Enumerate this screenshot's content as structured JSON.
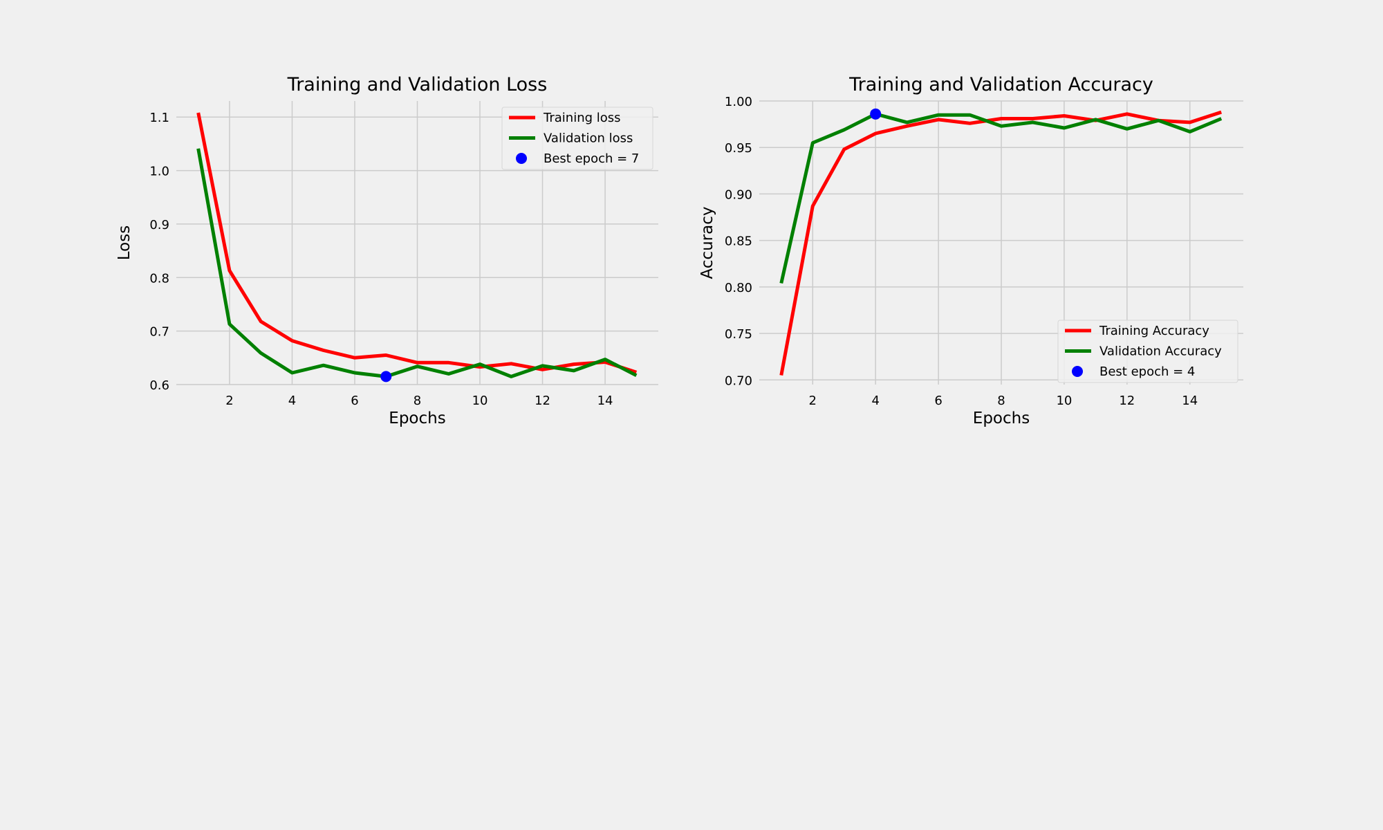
{
  "chart_data": [
    {
      "type": "line",
      "title": "Training and Validation Loss",
      "xlabel": "Epochs",
      "ylabel": "Loss",
      "xlim": [
        0.3,
        15.7
      ],
      "ylim": [
        0.6,
        1.13
      ],
      "xticks": [
        2,
        4,
        6,
        8,
        10,
        12,
        14
      ],
      "yticks": [
        0.6,
        0.7,
        0.8,
        0.9,
        1.0,
        1.1
      ],
      "ytick_labels": [
        "0.6",
        "0.7",
        "0.8",
        "0.9",
        "1.0",
        "1.1"
      ],
      "grid": true,
      "legend_position": "top-right",
      "x": [
        1,
        2,
        3,
        4,
        5,
        6,
        7,
        8,
        9,
        10,
        11,
        12,
        13,
        14,
        15
      ],
      "series": [
        {
          "name": "Training loss",
          "color": "#ff0000",
          "values": [
            1.108,
            0.813,
            0.718,
            0.682,
            0.664,
            0.65,
            0.655,
            0.641,
            0.641,
            0.633,
            0.639,
            0.628,
            0.638,
            0.642,
            0.623
          ]
        },
        {
          "name": "Validation loss",
          "color": "#008000",
          "values": [
            1.041,
            0.713,
            0.659,
            0.622,
            0.636,
            0.622,
            0.615,
            0.634,
            0.62,
            0.638,
            0.615,
            0.635,
            0.626,
            0.647,
            0.617
          ]
        }
      ],
      "best_point": {
        "name": "Best epoch = 7",
        "x": 7,
        "y": 0.615,
        "color": "#0000ff"
      }
    },
    {
      "type": "line",
      "title": "Training and Validation Accuracy",
      "xlabel": "Epochs",
      "ylabel": "Accuracy",
      "xlim": [
        0.3,
        15.7
      ],
      "ylim": [
        0.695,
        1.0
      ],
      "xticks": [
        2,
        4,
        6,
        8,
        10,
        12,
        14
      ],
      "yticks": [
        0.7,
        0.75,
        0.8,
        0.85,
        0.9,
        0.95,
        1.0
      ],
      "ytick_labels": [
        "0.70",
        "0.75",
        "0.80",
        "0.85",
        "0.90",
        "0.95",
        "1.00"
      ],
      "grid": true,
      "legend_position": "bottom-right",
      "x": [
        1,
        2,
        3,
        4,
        5,
        6,
        7,
        8,
        9,
        10,
        11,
        12,
        13,
        14,
        15
      ],
      "series": [
        {
          "name": "Training Accuracy",
          "color": "#ff0000",
          "values": [
            0.705,
            0.887,
            0.948,
            0.965,
            0.973,
            0.98,
            0.976,
            0.981,
            0.981,
            0.984,
            0.979,
            0.986,
            0.979,
            0.977,
            0.988
          ]
        },
        {
          "name": "Validation Accuracy",
          "color": "#008000",
          "values": [
            0.804,
            0.955,
            0.969,
            0.986,
            0.977,
            0.985,
            0.985,
            0.973,
            0.977,
            0.971,
            0.98,
            0.97,
            0.979,
            0.967,
            0.981
          ]
        }
      ],
      "best_point": {
        "name": "Best epoch = 4",
        "x": 4,
        "y": 0.986,
        "color": "#0000ff"
      }
    }
  ]
}
